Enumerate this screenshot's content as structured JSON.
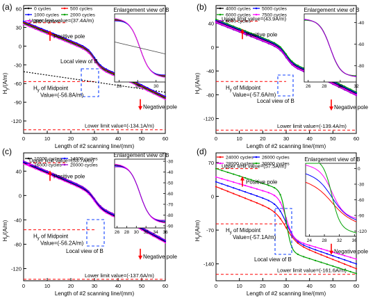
{
  "chart_data": [
    {
      "panel": "(a)",
      "type": "line",
      "xlabel": "Length of #2 scanning line/(mm)",
      "ylabel": "H_y/(A/m)",
      "xlim": [
        0,
        60
      ],
      "ylim": [
        -140,
        65
      ],
      "xticks": [
        0,
        10,
        20,
        30,
        40,
        50,
        60
      ],
      "yticks": [
        -120,
        -90,
        -60,
        -30,
        0,
        30,
        60
      ],
      "legend": [
        "0 cycles",
        "500 cycles",
        "1000 cycles",
        "2000 cycles",
        "3000 cycles"
      ],
      "legend_colors": [
        "#000000",
        "#ff0000",
        "#0000ff",
        "#00a000",
        "#ff00ff"
      ],
      "offsets": [
        0,
        1.2,
        2.4,
        -1.2,
        -2.4
      ],
      "upper_limit": {
        "value": 37.4,
        "text": "Upper limit value=(37.4A/m)"
      },
      "lower_limit": {
        "value": -134.1,
        "text": "Lower limit value=(-134.1A/m)"
      },
      "midpoint": {
        "value": -56.8,
        "text1": "H",
        "sub": "y",
        "text2": " of Midpoint",
        "text3": "Value=(-56.8A/m)"
      },
      "local_view_text": "Local view of B",
      "positive_pole": "Positive pole",
      "negative_pole": "Negative pole",
      "trend_line": [
        [
          0,
          -41
        ],
        [
          60,
          -74
        ]
      ],
      "inset": {
        "title": "Enlargement view of B",
        "xticks": [
          26,
          28,
          30
        ],
        "xlim": [
          25.5,
          31
        ],
        "ylim": [
          -72,
          -38
        ],
        "offsets": [
          0,
          0.8,
          1.6,
          -0.8,
          -1.6
        ],
        "trend_line": [
          [
            25.5,
            -52
          ],
          [
            31,
            -58
          ]
        ]
      }
    },
    {
      "panel": "(b)",
      "type": "line",
      "xlabel": "Length of #2 scanning line/(mm)",
      "ylabel": "H_y/(A/m)",
      "xlim": [
        0,
        60
      ],
      "ylim": [
        -145,
        70
      ],
      "xticks": [
        0,
        10,
        20,
        30,
        40,
        50,
        60
      ],
      "yticks": [
        -120,
        -80,
        -40,
        0,
        40
      ],
      "legend": [
        "4000 cycles",
        "5000 cycles",
        "6000 cycles",
        "7500 cycles",
        "8000 cycles"
      ],
      "legend_colors": [
        "#000000",
        "#0000ff",
        "#00a000",
        "#ff00ff",
        "#9900cc"
      ],
      "offsets": [
        0,
        1.5,
        3,
        -1.5,
        -3
      ],
      "upper_limit": {
        "value": 43.9,
        "text": "Upper limit value=(43.9A/m)"
      },
      "lower_limit": {
        "value": -139.4,
        "text": "Lower limit value=(-139.4A/m)"
      },
      "midpoint": {
        "value": -57.6,
        "text1": "H",
        "sub": "y",
        "text2": " of Midpoint",
        "text3": "Value=(-57.6A/m)"
      },
      "local_view_text": "Local view of B",
      "positive_pole": "Positive pole",
      "negative_pole": "Negative pole",
      "inset": {
        "title": "Enlargement view of B",
        "xticks": [
          26,
          28,
          30,
          32
        ],
        "xlim": [
          25.5,
          32
        ],
        "ylim": [
          -95,
          -32
        ],
        "yticks": [
          -40,
          -60,
          -80
        ],
        "offsets": [
          0,
          1,
          2,
          -1,
          -2
        ]
      }
    },
    {
      "panel": "(c)",
      "type": "line",
      "xlabel": "Length of #2 scanning line/(mm)",
      "ylabel": "H_y/(A/m)",
      "xlim": [
        0,
        60
      ],
      "ylim": [
        -140,
        70
      ],
      "xticks": [
        0,
        10,
        20,
        30,
        40,
        50,
        60
      ],
      "yticks": [
        -120,
        -80,
        -40,
        0,
        40
      ],
      "legend": [
        "10000 cycles",
        "14000 cycles",
        "16000 cycles",
        "20000 cycles"
      ],
      "legend_colors": [
        "#000000",
        "#0000ff",
        "#ff00ff",
        "#9900cc"
      ],
      "offsets": [
        0,
        1.5,
        -1.5,
        3
      ],
      "upper_limit": {
        "value": 53.7,
        "text": "Upper limit value=(53.7A/m)"
      },
      "lower_limit": {
        "value": -137.6,
        "text": "Lower limit value=(-137.6A/m)"
      },
      "midpoint": {
        "value": -56.2,
        "text1": "H",
        "sub": "y",
        "text2": " of Midpoint",
        "text3": "Value=(-56.2A/m)"
      },
      "local_view_text": "Local view of B",
      "positive_pole": "Positive pole",
      "negative_pole": "Negative pole",
      "inset": {
        "title": "Enlargement view of B",
        "xticks": [
          26,
          28,
          30,
          32,
          34,
          36
        ],
        "xlim": [
          25.5,
          36
        ],
        "ylim": [
          -92,
          -28
        ],
        "yticks": [
          -30,
          -40,
          -50,
          -60,
          -70,
          -80,
          -90
        ],
        "offsets": [
          0,
          1.2,
          -1.2,
          2.4
        ]
      }
    },
    {
      "panel": "(d)",
      "type": "line",
      "xlabel": "Length of #2 scanning line/(mm)",
      "ylabel": "H_y/(A/m)",
      "xlim": [
        0,
        60
      ],
      "ylim": [
        -175,
        90
      ],
      "xticks": [
        0,
        10,
        20,
        30,
        40,
        50,
        60
      ],
      "yticks": [
        -140,
        -70,
        0,
        70
      ],
      "legend": [
        "24000 cycles",
        "26000 cycles",
        "28000 cycles",
        "30000 cycles"
      ],
      "legend_colors": [
        "#ff0000",
        "#0000ff",
        "#ff00ff",
        "#00a000"
      ],
      "upper_limit": {
        "value": 57.5,
        "text": "Upper limit value=(57.5A/m)"
      },
      "lower_limit": {
        "value": -161.6,
        "text": "Lower limit value=(-161.6A/m)"
      },
      "midpoint": {
        "value": -57.1,
        "text1": "H",
        "sub": "y",
        "text2": " of Midpoint",
        "text3": "Value=(-57.1A/m)"
      },
      "local_view_text": "Local view of B",
      "positive_pole": "Positive pole",
      "negative_pole": "Negative pole",
      "inset": {
        "title": "Enlargement view of B",
        "xticks": [
          24,
          28,
          32,
          36
        ],
        "xlim": [
          23,
          36.5
        ],
        "ylim": [
          -130,
          10
        ],
        "yticks": [
          0,
          -30,
          -60,
          -90,
          -120
        ]
      }
    }
  ]
}
